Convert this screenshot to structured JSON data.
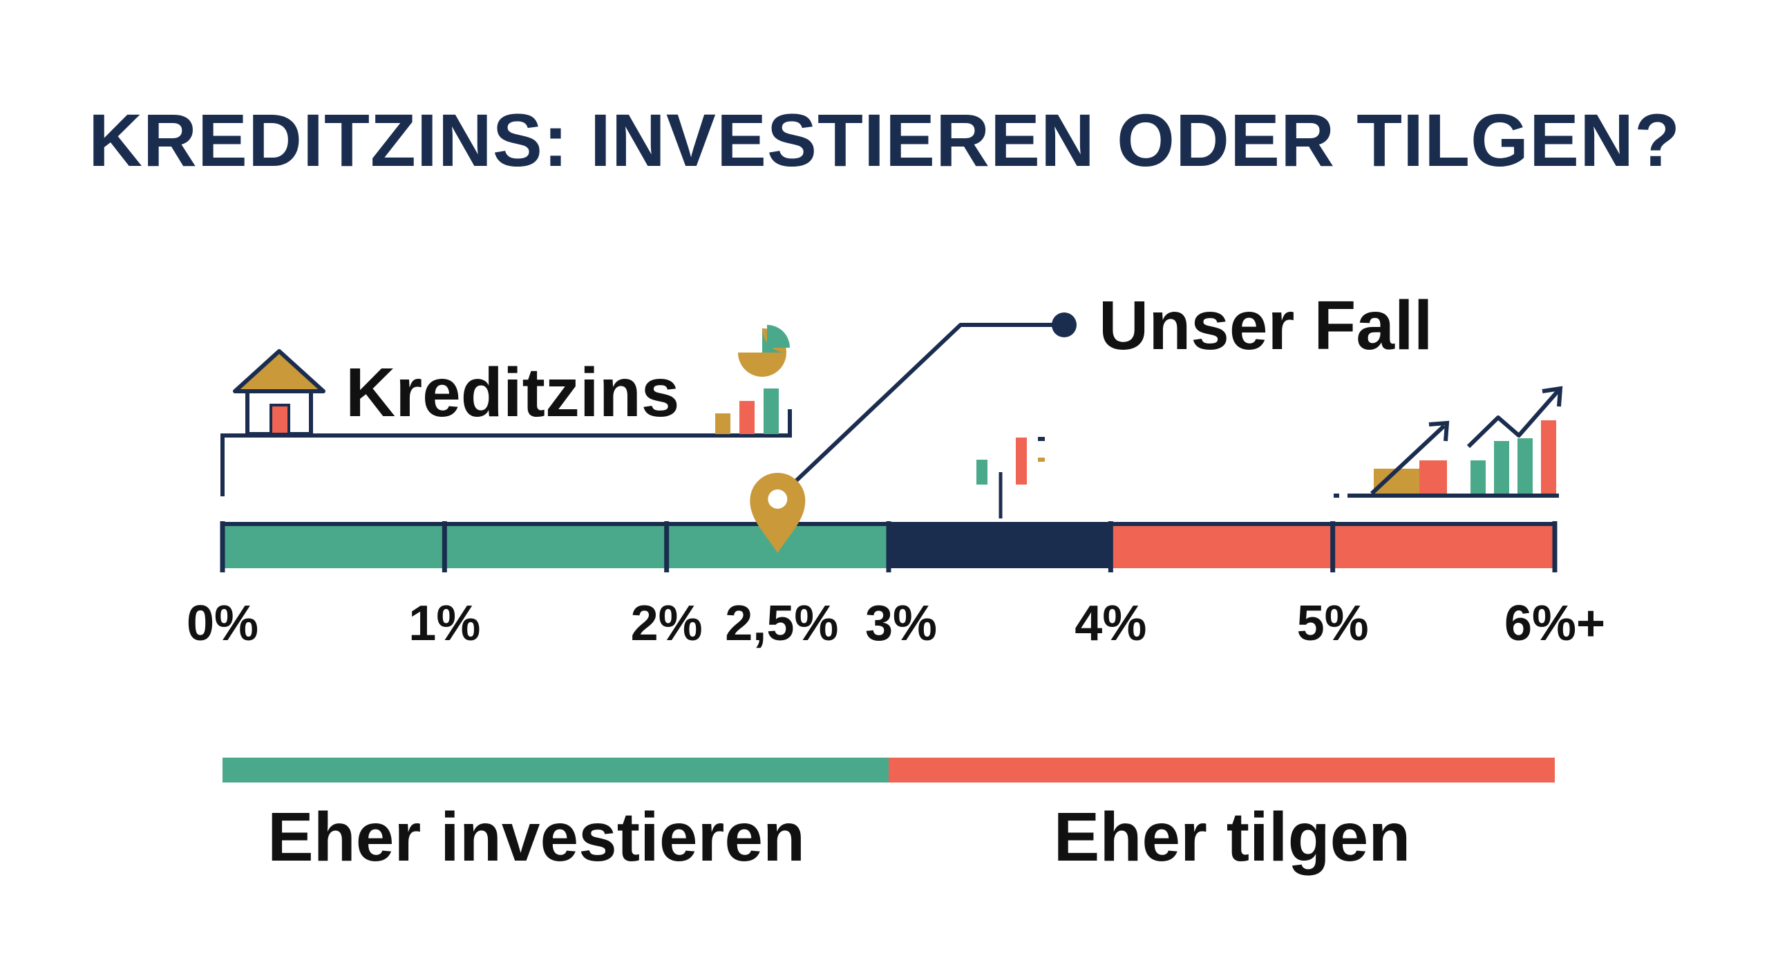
{
  "title": "KREDITZINS: INVESTIEREN ODER TILGEN?",
  "colors": {
    "green": "#4aa98a",
    "navy": "#1b2d4f",
    "red": "#ef6452",
    "gold": "#c9993a",
    "text": "#111111"
  },
  "scale": {
    "min": 0,
    "max": 6,
    "ticks": [
      {
        "value": 0,
        "label": "0%"
      },
      {
        "value": 1,
        "label": "1%"
      },
      {
        "value": 2,
        "label": "2%"
      },
      {
        "value": 3,
        "label": "3%"
      },
      {
        "value": 4,
        "label": "4%"
      },
      {
        "value": 5,
        "label": "5%"
      },
      {
        "value": 6,
        "label": "6%+"
      }
    ],
    "segments": [
      {
        "from": 0,
        "to": 3,
        "color": "#4aa98a"
      },
      {
        "from": 3,
        "to": 4,
        "color": "#1b2d4f"
      },
      {
        "from": 4,
        "to": 6,
        "color": "#ef6452"
      }
    ]
  },
  "marker": {
    "value": 2.5,
    "label": "2,5%",
    "callout": "Unser Fall"
  },
  "bracket_label": "Kreditzins",
  "zones": [
    {
      "from": 0,
      "to": 3,
      "label": "Eher investieren",
      "color": "#4aa98a"
    },
    {
      "from": 3,
      "to": 6,
      "label": "Eher tilgen",
      "color": "#ef6452"
    }
  ],
  "icons": [
    "house-icon",
    "pie-chart-icon",
    "bar-chart-icon",
    "candlestick-icon",
    "growth-chart-icon"
  ]
}
